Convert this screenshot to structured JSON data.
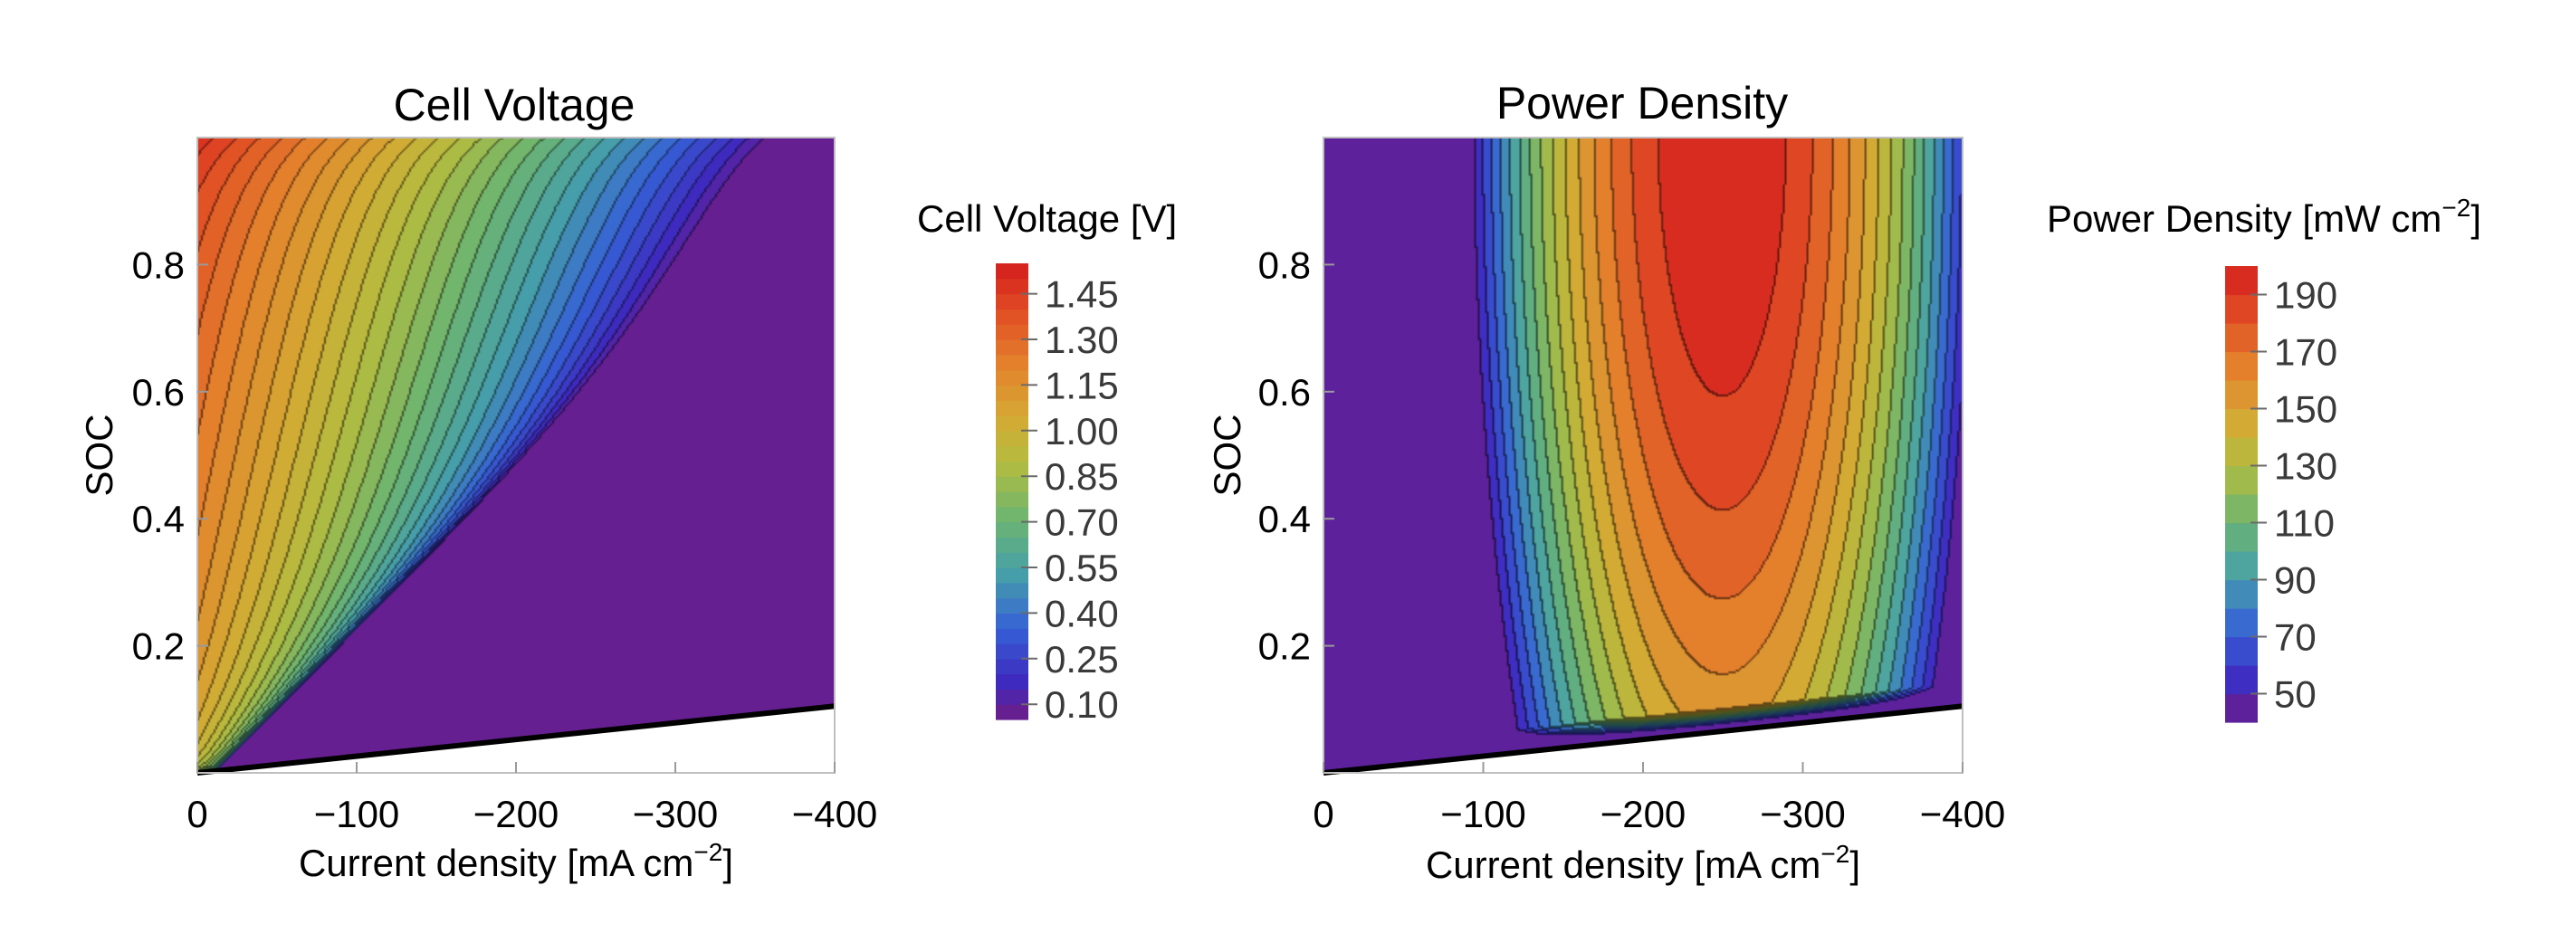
{
  "chart_data": [
    {
      "type": "heatmap",
      "subtype": "filled-contour",
      "title": "Cell Voltage",
      "xlabel": "Current density [mA cm",
      "xlabel_sup": "−2",
      "xlabel_end": "]",
      "ylabel": "SOC",
      "xlim": [
        0,
        -400
      ],
      "ylim": [
        0,
        1
      ],
      "x_ticks": [
        0,
        -100,
        -200,
        -300,
        -400
      ],
      "x_tick_labels": [
        "0",
        "−100",
        "−200",
        "−300",
        "−400"
      ],
      "y_ticks": [
        0.2,
        0.4,
        0.6,
        0.8
      ],
      "y_tick_labels": [
        "0.2",
        "0.4",
        "0.6",
        "0.8"
      ],
      "colorbar": {
        "title": "Cell Voltage [V]",
        "range": [
          0.05,
          1.55
        ],
        "ticks": [
          0.1,
          0.25,
          0.4,
          0.55,
          0.7,
          0.85,
          1.0,
          1.15,
          1.3,
          1.45
        ],
        "tick_labels": [
          "0.10",
          "0.25",
          "0.40",
          "0.55",
          "0.70",
          "0.85",
          "1.00",
          "1.15",
          "1.30",
          "1.45"
        ],
        "levels": 30
      },
      "boundary_line": {
        "x": [
          0,
          -400
        ],
        "soc": [
          0,
          0.105
        ]
      },
      "grid": false,
      "colormap": "rainbow"
    },
    {
      "type": "heatmap",
      "subtype": "filled-contour",
      "title": "Power Density",
      "xlabel": "Current density [mA cm",
      "xlabel_sup": "−2",
      "xlabel_end": "]",
      "ylabel": "SOC",
      "xlim": [
        0,
        -400
      ],
      "ylim": [
        0,
        1
      ],
      "x_ticks": [
        0,
        -100,
        -200,
        -300,
        -400
      ],
      "x_tick_labels": [
        "0",
        "−100",
        "−200",
        "−300",
        "−400"
      ],
      "y_ticks": [
        0.2,
        0.4,
        0.6,
        0.8
      ],
      "y_tick_labels": [
        "0.2",
        "0.4",
        "0.6",
        "0.8"
      ],
      "colorbar": {
        "title": "Power Density [mW cm",
        "title_sup": "−2",
        "title_end": "]",
        "range": [
          40,
          200
        ],
        "ticks": [
          50,
          70,
          90,
          110,
          130,
          150,
          170,
          190
        ],
        "tick_labels": [
          "50",
          "70",
          "90",
          "110",
          "130",
          "150",
          "170",
          "190"
        ],
        "levels": 16
      },
      "peak": {
        "x": -250,
        "soc": 1.0,
        "value": 200
      },
      "boundary_line": {
        "x": [
          0,
          -400
        ],
        "soc": [
          0,
          0.105
        ]
      },
      "grid": false,
      "colormap": "rainbow"
    }
  ]
}
